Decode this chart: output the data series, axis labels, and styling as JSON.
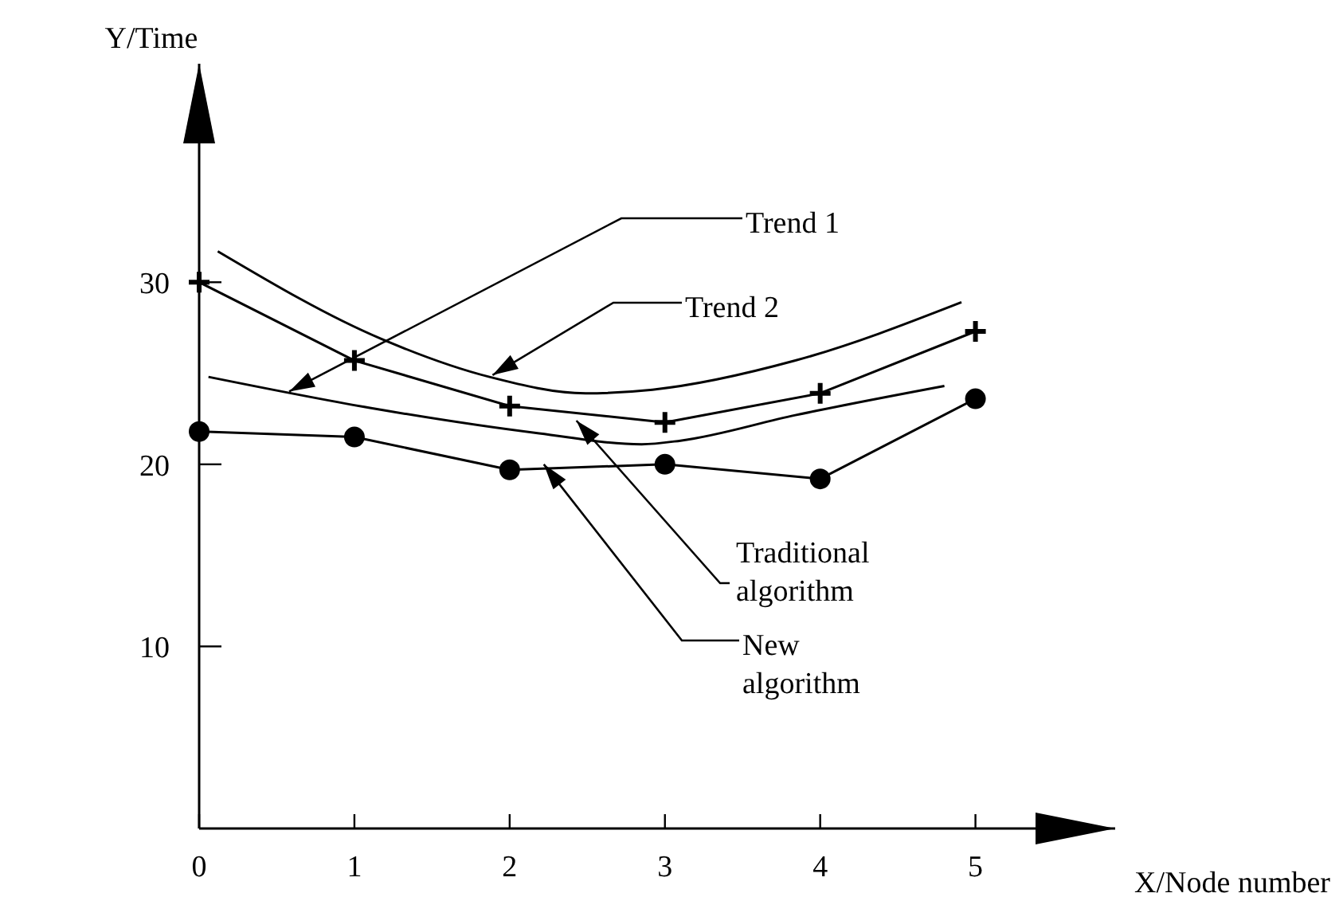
{
  "chart_data": {
    "type": "line",
    "xlabel": "X/Node number",
    "ylabel": "Y/Time",
    "xlim": [
      0,
      5.9
    ],
    "ylim": [
      0,
      42
    ],
    "xticks": [
      0,
      1,
      2,
      3,
      4,
      5
    ],
    "yticks": [
      10,
      20,
      30
    ],
    "grid": false,
    "series": [
      {
        "color": "#000000",
        "marker": "cross",
        "x": [
          0,
          1,
          2,
          3,
          4,
          5
        ],
        "values": [
          30.0,
          25.7,
          23.2,
          22.3,
          23.9,
          27.3
        ]
      },
      {
        "color": "#000000",
        "marker": "circle",
        "x": [
          0,
          1,
          2,
          3,
          4,
          5
        ],
        "values": [
          21.8,
          21.5,
          19.7,
          20.0,
          19.2,
          23.6
        ]
      },
      {
        "color": "#000000",
        "marker": "none",
        "x": [
          0.06,
          1.1,
          2.19,
          2.85,
          3.1,
          3.84,
          4.8
        ],
        "values": [
          24.8,
          23.1,
          21.7,
          21.1,
          21.3,
          22.7,
          24.3
        ]
      },
      {
        "color": "#000000",
        "marker": "none",
        "x": [
          0.12,
          1.17,
          1.87,
          2.49,
          2.92,
          3.84,
          4.91
        ],
        "values": [
          31.7,
          26.9,
          24.8,
          23.9,
          24.1,
          25.7,
          28.9
        ]
      }
    ],
    "annotations": [
      {
        "text": "Trend 1",
        "x": 0.58,
        "y": 24.0
      },
      {
        "text": "Trend 2",
        "x": 1.89,
        "y": 24.9
      },
      {
        "text": "Traditional algorithm",
        "x": 2.43,
        "y": 22.4
      },
      {
        "text": "New algorithm",
        "x": 2.22,
        "y": 20.0
      }
    ]
  }
}
